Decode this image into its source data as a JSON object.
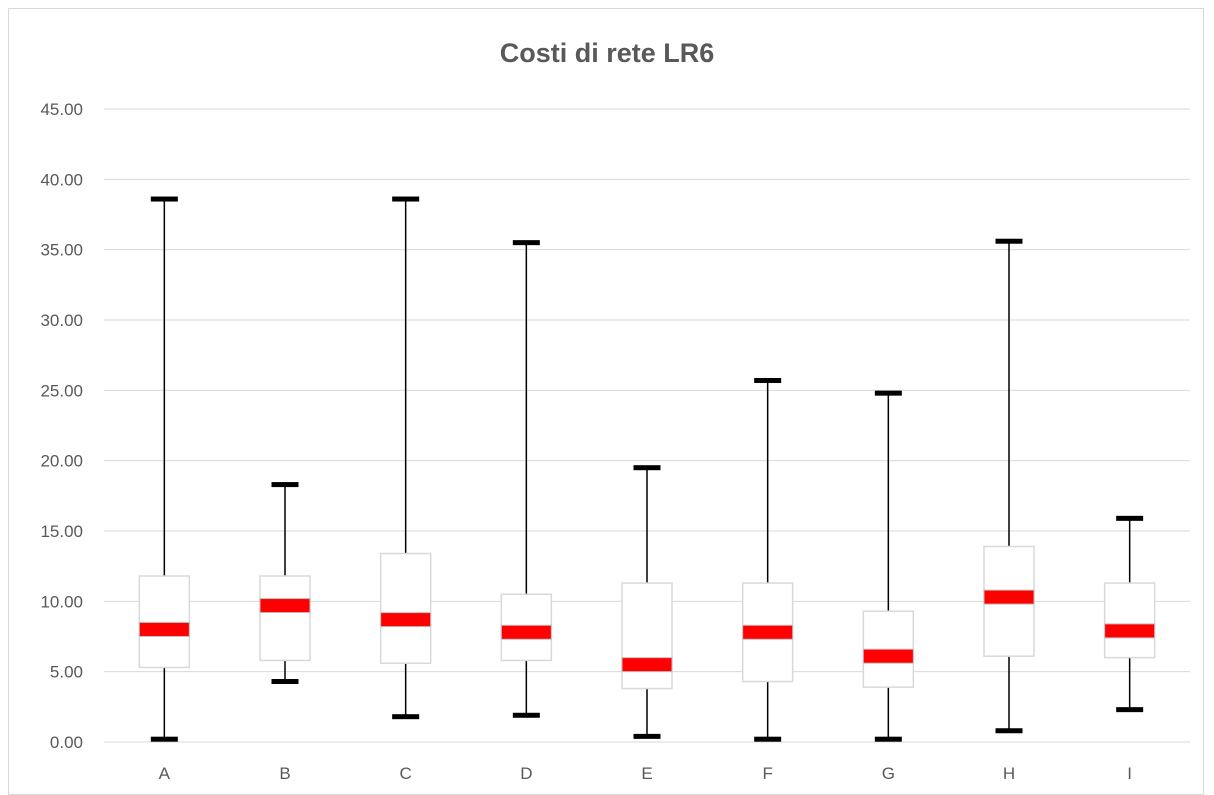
{
  "chart_data": {
    "type": "boxplot",
    "title": "Costi di rete LR6",
    "xlabel": "",
    "ylabel": "",
    "categories": [
      "A",
      "B",
      "C",
      "D",
      "E",
      "F",
      "G",
      "H",
      "I"
    ],
    "ylim": [
      0,
      45
    ],
    "yticks": [
      "0.00",
      "5.00",
      "10.00",
      "15.00",
      "20.00",
      "25.00",
      "30.00",
      "35.00",
      "40.00",
      "45.00"
    ],
    "grid": true,
    "boxes": [
      {
        "category": "A",
        "min": 0.2,
        "q1": 5.3,
        "median": 8.0,
        "q3": 11.8,
        "max": 38.6
      },
      {
        "category": "B",
        "min": 4.3,
        "q1": 5.8,
        "median": 9.7,
        "q3": 11.8,
        "max": 18.3
      },
      {
        "category": "C",
        "min": 1.8,
        "q1": 5.6,
        "median": 8.7,
        "q3": 13.4,
        "max": 38.6
      },
      {
        "category": "D",
        "min": 1.9,
        "q1": 5.8,
        "median": 7.8,
        "q3": 10.5,
        "max": 35.5
      },
      {
        "category": "E",
        "min": 0.4,
        "q1": 3.8,
        "median": 5.5,
        "q3": 11.3,
        "max": 19.5
      },
      {
        "category": "F",
        "min": 0.2,
        "q1": 4.3,
        "median": 7.8,
        "q3": 11.3,
        "max": 25.7
      },
      {
        "category": "G",
        "min": 0.2,
        "q1": 3.9,
        "median": 6.1,
        "q3": 9.3,
        "max": 24.8
      },
      {
        "category": "H",
        "min": 0.8,
        "q1": 6.1,
        "median": 10.3,
        "q3": 13.9,
        "max": 35.6
      },
      {
        "category": "I",
        "min": 2.3,
        "q1": 6.0,
        "median": 7.9,
        "q3": 11.3,
        "max": 15.9
      }
    ],
    "colors": {
      "median": "#ff0000",
      "whisker": "#000000",
      "box_border": "#d9d9d9",
      "grid": "#d9d9d9",
      "text": "#595959"
    }
  }
}
